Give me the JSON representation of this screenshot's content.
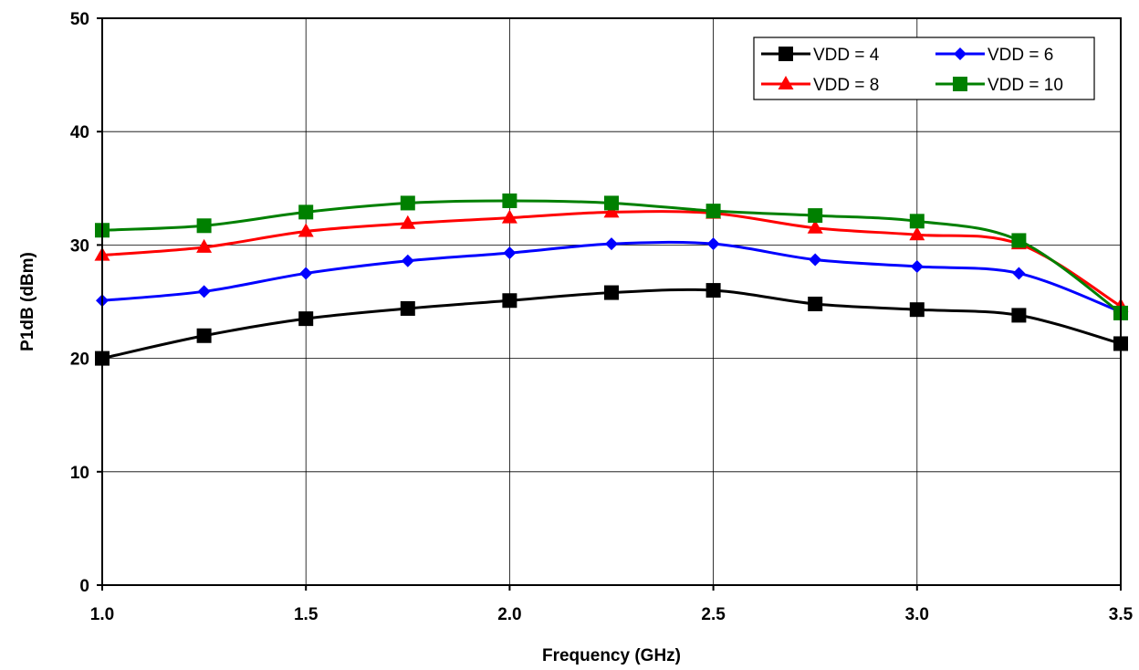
{
  "chart_data": {
    "type": "line",
    "title": "",
    "xlabel": "Frequency (GHz)",
    "ylabel": "P1dB (dBm)",
    "xlim": [
      1.0,
      3.5
    ],
    "ylim": [
      0,
      50
    ],
    "x_ticks": [
      "1.0",
      "1.5",
      "2.0",
      "2.5",
      "3.0",
      "3.5"
    ],
    "y_ticks": [
      "0",
      "10",
      "20",
      "30",
      "40",
      "50"
    ],
    "grid": true,
    "legend_position": "top-right",
    "x": [
      1.0,
      1.25,
      1.5,
      1.75,
      2.0,
      2.25,
      2.5,
      2.75,
      3.0,
      3.25,
      3.5
    ],
    "series": [
      {
        "name": "VDD = 4",
        "color": "#000000",
        "marker": "square",
        "values": [
          20.0,
          22.0,
          23.5,
          24.4,
          25.1,
          25.8,
          26.0,
          24.8,
          24.3,
          23.8,
          21.3
        ]
      },
      {
        "name": "VDD = 6",
        "color": "#0000ff",
        "marker": "diamond",
        "values": [
          25.1,
          25.9,
          27.5,
          28.6,
          29.3,
          30.1,
          30.1,
          28.7,
          28.1,
          27.5,
          24.1
        ]
      },
      {
        "name": "VDD = 8",
        "color": "#ff0000",
        "marker": "triangle",
        "values": [
          29.1,
          29.8,
          31.2,
          31.9,
          32.4,
          32.9,
          32.8,
          31.5,
          30.9,
          30.1,
          24.6
        ]
      },
      {
        "name": "VDD = 10",
        "color": "#008000",
        "marker": "square",
        "values": [
          31.3,
          31.7,
          32.9,
          33.7,
          33.9,
          33.7,
          33.0,
          32.6,
          32.1,
          30.4,
          24.0
        ]
      }
    ]
  }
}
